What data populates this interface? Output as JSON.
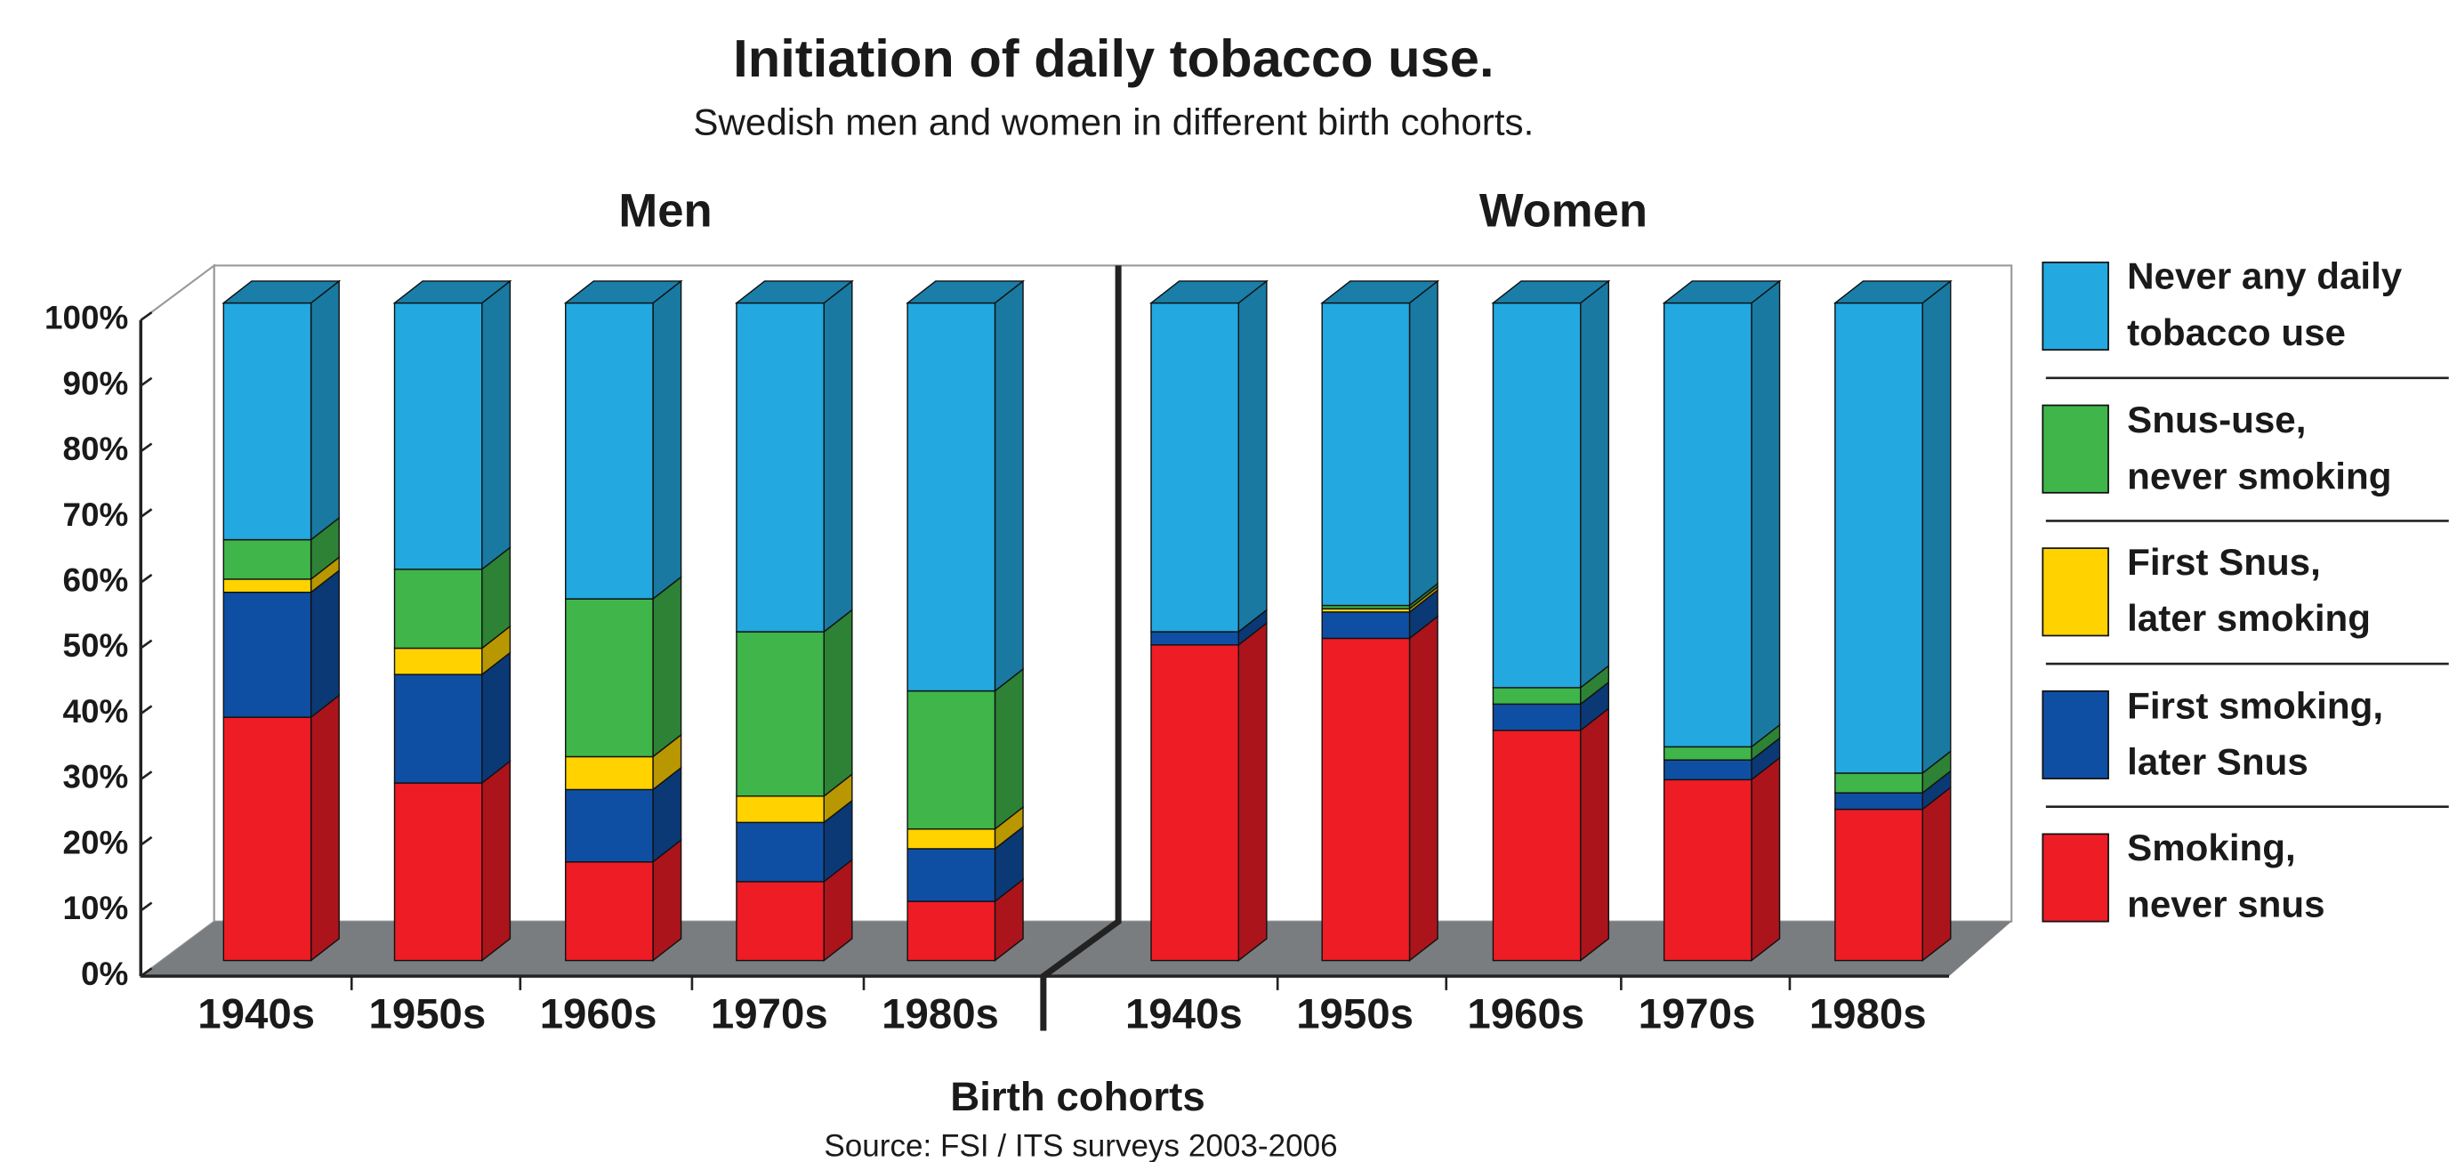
{
  "chart_data": {
    "type": "bar",
    "stacked": true,
    "title": "Initiation of daily tobacco use.",
    "subtitle": "Swedish men and women in different birth cohorts.",
    "xlabel": "Birth cohorts",
    "source": "Source: FSI / ITS surveys 2003-2006",
    "groups": [
      "Men",
      "Women"
    ],
    "categories": [
      "1940s",
      "1950s",
      "1960s",
      "1970s",
      "1980s",
      "1940s",
      "1950s",
      "1960s",
      "1970s",
      "1980s"
    ],
    "series": [
      {
        "name": "Smoking,\nnever snus",
        "color": "#ee1c25",
        "values": [
          37,
          27,
          15,
          12,
          9,
          48,
          49,
          35,
          27.5,
          23
        ]
      },
      {
        "name": "First smoking,\nlater Snus",
        "color": "#0f4fa3",
        "values": [
          19,
          16.5,
          11,
          9,
          8,
          2,
          4,
          4,
          3,
          2.5
        ]
      },
      {
        "name": "First Snus,\nlater smoking",
        "color": "#ffd200",
        "values": [
          2,
          4,
          5,
          4,
          3,
          0,
          0.5,
          0,
          0,
          0
        ]
      },
      {
        "name": "Snus-use,\nnever smoking",
        "color": "#3fb54a",
        "values": [
          6,
          12,
          24,
          25,
          21,
          0,
          0.5,
          2.5,
          2,
          3
        ]
      },
      {
        "name": "Never any daily\ntobacco use",
        "color": "#23a8e0",
        "values": [
          36,
          40.5,
          45,
          50,
          59,
          50,
          46,
          58.5,
          67.5,
          71.5
        ]
      }
    ],
    "ylim": [
      0,
      100
    ],
    "yticks": [
      {
        "value": 0,
        "label": "0%"
      },
      {
        "value": 10,
        "label": "10%"
      },
      {
        "value": 20,
        "label": "20%"
      },
      {
        "value": 30,
        "label": "30%"
      },
      {
        "value": 40,
        "label": "40%"
      },
      {
        "value": 50,
        "label": "50%"
      },
      {
        "value": 60,
        "label": "60%"
      },
      {
        "value": 70,
        "label": "70%"
      },
      {
        "value": 80,
        "label": "80%"
      },
      {
        "value": 90,
        "label": "90%"
      },
      {
        "value": 100,
        "label": "100%"
      }
    ],
    "legend": "right"
  }
}
